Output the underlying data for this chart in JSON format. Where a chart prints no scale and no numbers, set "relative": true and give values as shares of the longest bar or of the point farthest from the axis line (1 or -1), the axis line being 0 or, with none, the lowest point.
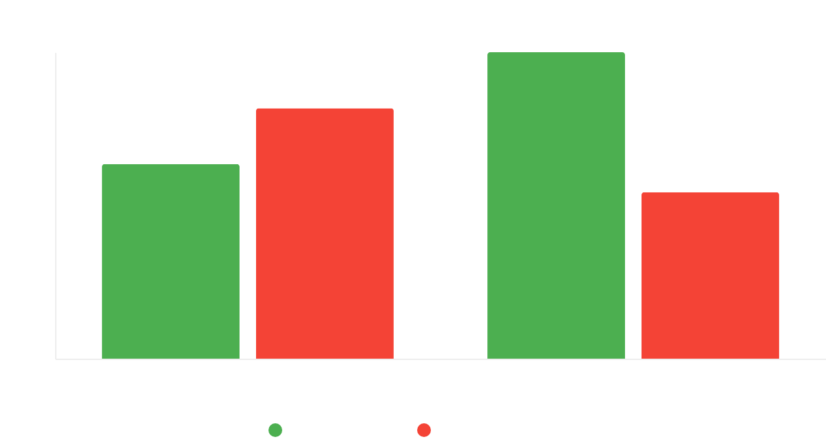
{
  "chart_data": {
    "type": "bar",
    "categories": [
      null,
      null
    ],
    "relative": true,
    "series": [
      {
        "color": "#4caf50",
        "values": [
          0.635,
          1
        ]
      },
      {
        "color": "#f44336",
        "values": [
          0.817,
          0.543
        ]
      }
    ]
  }
}
